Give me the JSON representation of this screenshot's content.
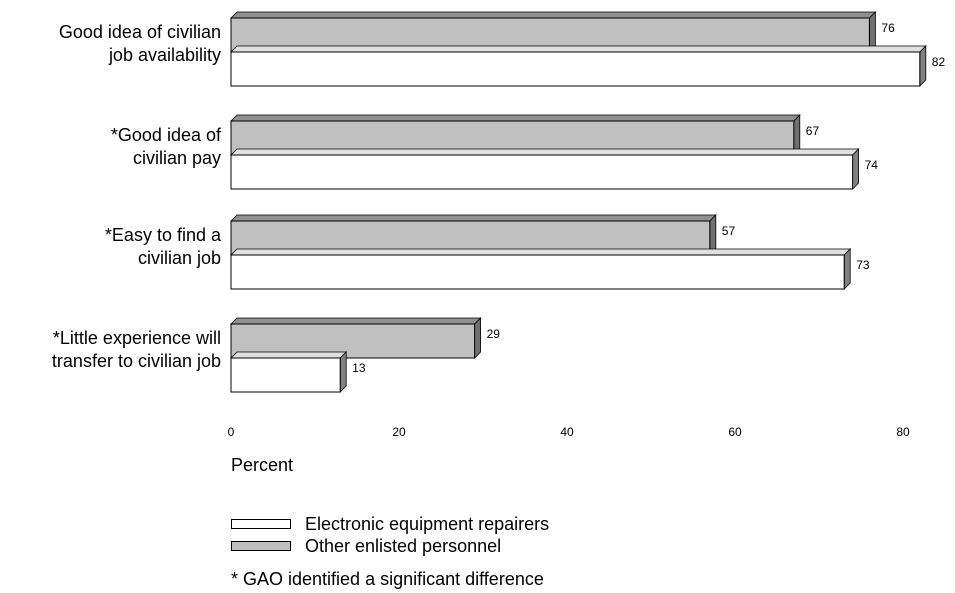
{
  "chart_data": {
    "type": "bar",
    "orientation": "horizontal",
    "categories": [
      [
        "Good idea of civilian",
        "job availability"
      ],
      [
        "*Good idea of",
        "civilian pay"
      ],
      [
        "*Easy to find a",
        "civilian job"
      ],
      [
        "*Little experience will",
        "transfer to civilian job"
      ]
    ],
    "series": [
      {
        "name": "Other enlisted personnel",
        "values": [
          76,
          67,
          57,
          29
        ],
        "color": "#c0c0c0"
      },
      {
        "name": "Electronic equipment repairers",
        "values": [
          82,
          74,
          73,
          13
        ],
        "color": "#ffffff"
      }
    ],
    "xticks": [
      "0",
      "20",
      "40",
      "60",
      "80"
    ],
    "xlim": [
      0,
      80
    ],
    "xlabel": "Percent",
    "grid": false
  },
  "legend": [
    {
      "label": "Electronic equipment repairers",
      "color": "#ffffff"
    },
    {
      "label": "Other enlisted personnel",
      "color": "#c0c0c0"
    }
  ],
  "footnote": "* GAO identified a significant difference"
}
